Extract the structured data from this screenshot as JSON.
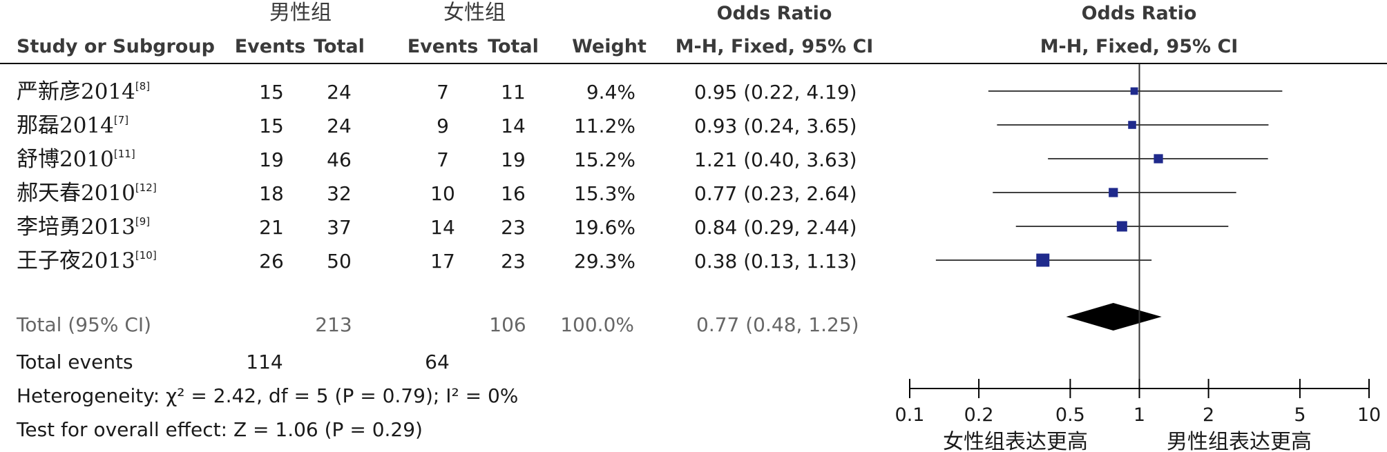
{
  "headers": {
    "group1": "男性组",
    "group2": "女性组",
    "or_title": "Odds Ratio",
    "or_method": "M-H, Fixed, 95% CI",
    "plot_title": "Odds Ratio",
    "plot_method": "M-H, Fixed, 95% CI",
    "study": "Study or Subgroup",
    "events1": "Events",
    "total1": "Total",
    "events2": "Events",
    "total2": "Total",
    "weight": "Weight"
  },
  "total_row": {
    "label": "Total (95% CI)",
    "total1": "213",
    "total2": "106",
    "weight": "100.0%",
    "ci": "0.77 (0.48, 1.25)"
  },
  "events_row": {
    "label": "Total events",
    "events1": "114",
    "events2": "64"
  },
  "heterogeneity": "Heterogeneity: χ² = 2.42, df = 5 (P = 0.79); I² = 0%",
  "overall_effect": "Test for overall effect: Z = 1.06 (P = 0.29)",
  "axis_footer": {
    "left": "女性组表达更高",
    "right": "男性组表达更高"
  },
  "colors": {
    "marker": "#1f2a8c",
    "diamond": "#000000",
    "line": "#000000",
    "text": "#1a1a1a"
  },
  "chart_data": {
    "type": "forest",
    "scale": "log",
    "xlim": [
      0.1,
      10
    ],
    "x_ticks": [
      0.1,
      0.2,
      0.5,
      1,
      2,
      5,
      10
    ],
    "x_tick_labels": [
      "0.1",
      "0.2",
      "0.5",
      "1",
      "2",
      "5",
      "10"
    ],
    "studies": [
      {
        "name": "严新彦2014",
        "ref": "[8]",
        "events1": 15,
        "total1": 24,
        "events2": 7,
        "total2": 11,
        "weight": "9.4%",
        "weight_value": 9.4,
        "or": 0.95,
        "lo": 0.22,
        "hi": 4.19,
        "ci_text": "0.95 (0.22, 4.19)"
      },
      {
        "name": "那磊2014",
        "ref": "[7]",
        "events1": 15,
        "total1": 24,
        "events2": 9,
        "total2": 14,
        "weight": "11.2%",
        "weight_value": 11.2,
        "or": 0.93,
        "lo": 0.24,
        "hi": 3.65,
        "ci_text": "0.93 (0.24, 3.65)"
      },
      {
        "name": "舒博2010",
        "ref": "[11]",
        "events1": 19,
        "total1": 46,
        "events2": 7,
        "total2": 19,
        "weight": "15.2%",
        "weight_value": 15.2,
        "or": 1.21,
        "lo": 0.4,
        "hi": 3.63,
        "ci_text": "1.21 (0.40, 3.63)"
      },
      {
        "name": "郝天春2010",
        "ref": "[12]",
        "events1": 18,
        "total1": 32,
        "events2": 10,
        "total2": 16,
        "weight": "15.3%",
        "weight_value": 15.3,
        "or": 0.77,
        "lo": 0.23,
        "hi": 2.64,
        "ci_text": "0.77 (0.23, 2.64)"
      },
      {
        "name": "李培勇2013",
        "ref": "[9]",
        "events1": 21,
        "total1": 37,
        "events2": 14,
        "total2": 23,
        "weight": "19.6%",
        "weight_value": 19.6,
        "or": 0.84,
        "lo": 0.29,
        "hi": 2.44,
        "ci_text": "0.84 (0.29, 2.44)"
      },
      {
        "name": "王子夜2013",
        "ref": "[10]",
        "events1": 26,
        "total1": 50,
        "events2": 17,
        "total2": 23,
        "weight": "29.3%",
        "weight_value": 29.3,
        "or": 0.38,
        "lo": 0.13,
        "hi": 1.13,
        "ci_text": "0.38 (0.13, 1.13)"
      }
    ],
    "pooled": {
      "or": 0.77,
      "lo": 0.48,
      "hi": 1.25
    }
  }
}
